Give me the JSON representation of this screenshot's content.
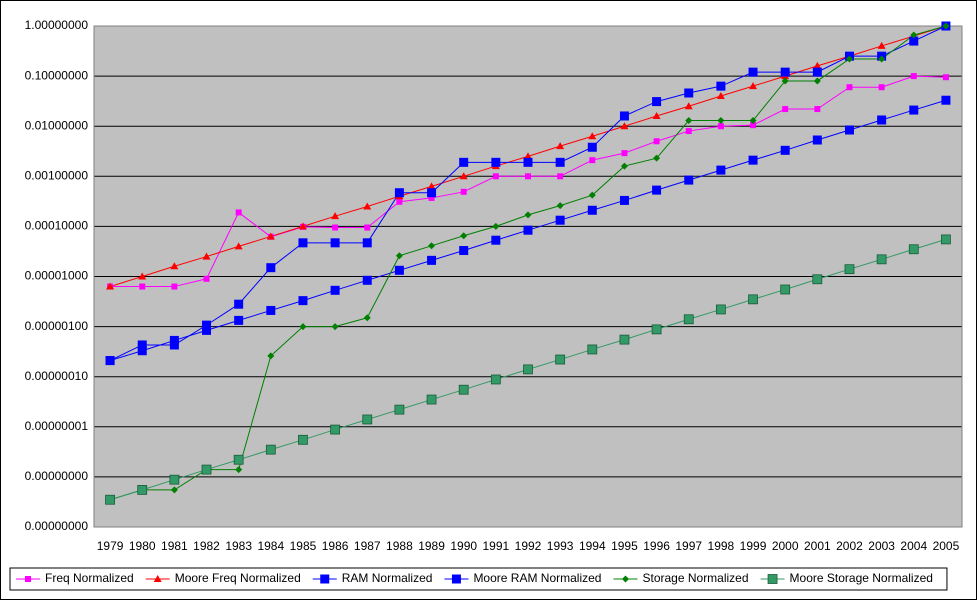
{
  "chart_data": {
    "type": "line",
    "log_scale": true,
    "grid": true,
    "legend": "bottom",
    "categories": [
      "1979",
      "1980",
      "1981",
      "1982",
      "1983",
      "1984",
      "1985",
      "1986",
      "1987",
      "1988",
      "1989",
      "1990",
      "1991",
      "1992",
      "1993",
      "1994",
      "1995",
      "1996",
      "1997",
      "1998",
      "1999",
      "2000",
      "2001",
      "2002",
      "2003",
      "2004",
      "2005"
    ],
    "ylim": [
      1e-10,
      1
    ],
    "yticks": [
      {
        "value": 1,
        "label": "1.00000000"
      },
      {
        "value": 0.1,
        "label": "0.10000000"
      },
      {
        "value": 0.01,
        "label": "0.01000000"
      },
      {
        "value": 0.001,
        "label": "0.00100000"
      },
      {
        "value": 0.0001,
        "label": "0.00010000"
      },
      {
        "value": 1e-05,
        "label": "0.00001000"
      },
      {
        "value": 1e-06,
        "label": "0.00000100"
      },
      {
        "value": 1e-07,
        "label": "0.00000010"
      },
      {
        "value": 1e-08,
        "label": "0.00000001"
      },
      {
        "value": 1e-09,
        "label": "0.00000000"
      },
      {
        "value": 1e-10,
        "label": "0.00000000"
      }
    ],
    "series": [
      {
        "name": "Freq Normalized",
        "color": "#ff00ff",
        "marker": "square-small",
        "values": [
          6.3e-06,
          6.3e-06,
          6.3e-06,
          9e-06,
          0.00019,
          6.2e-05,
          9.8e-05,
          9.5e-05,
          9.5e-05,
          0.00031,
          0.00037,
          0.00049,
          0.001,
          0.001,
          0.001,
          0.0021,
          0.0029,
          0.005,
          0.008,
          0.01,
          0.0105,
          0.022,
          0.022,
          0.06,
          0.06,
          0.1,
          0.095
        ]
      },
      {
        "name": "Moore Freq Normalized",
        "color": "#ff0000",
        "marker": "triangle",
        "values": [
          6.3e-06,
          1e-05,
          1.6e-05,
          2.5e-05,
          4e-05,
          6.3e-05,
          0.0001,
          0.00016,
          0.00025,
          0.0004,
          0.00063,
          0.001,
          0.0016,
          0.0025,
          0.004,
          0.0063,
          0.01,
          0.016,
          0.025,
          0.04,
          0.063,
          0.1,
          0.16,
          0.25,
          0.4,
          0.63,
          1
        ]
      },
      {
        "name": "RAM Normalized",
        "color": "#0000ff",
        "marker": "square",
        "values": [
          2.1e-07,
          4.3e-07,
          4.3e-07,
          1.07e-06,
          2.8e-06,
          1.5e-05,
          4.7e-05,
          4.7e-05,
          4.7e-05,
          0.00047,
          0.00047,
          0.0019,
          0.0019,
          0.0019,
          0.0019,
          0.0038,
          0.016,
          0.031,
          0.046,
          0.063,
          0.12,
          0.12,
          0.12,
          0.25,
          0.25,
          0.5,
          1
        ]
      },
      {
        "name": "Moore RAM Normalized",
        "color": "#0000ff",
        "marker": "square",
        "values": [
          2.1e-07,
          3.3e-07,
          5.3e-07,
          8.4e-07,
          1.33e-06,
          2.1e-06,
          3.3e-06,
          5.3e-06,
          8.4e-06,
          1.33e-05,
          2.1e-05,
          3.3e-05,
          5.3e-05,
          8.4e-05,
          0.000133,
          0.00021,
          0.00033,
          0.00053,
          0.00084,
          0.00133,
          0.0021,
          0.0033,
          0.0053,
          0.0084,
          0.0133,
          0.021,
          0.033
        ]
      },
      {
        "name": "Storage Normalized",
        "color": "#008000",
        "marker": "diamond",
        "values": [
          3.5e-10,
          5.5e-10,
          5.5e-10,
          1.4e-09,
          1.4e-09,
          2.6e-07,
          1e-06,
          1e-06,
          1.5e-06,
          2.6e-05,
          4.1e-05,
          6.5e-05,
          0.0001,
          0.00017,
          0.00026,
          0.00042,
          0.0016,
          0.0023,
          0.013,
          0.013,
          0.013,
          0.08,
          0.08,
          0.22,
          0.22,
          0.66,
          1
        ]
      },
      {
        "name": "Moore Storage Normalized",
        "color": "#339966",
        "marker": "square-x",
        "values": [
          3.5e-10,
          5.5e-10,
          8.8e-10,
          1.4e-09,
          2.2e-09,
          3.5e-09,
          5.5e-09,
          8.8e-09,
          1.4e-08,
          2.2e-08,
          3.5e-08,
          5.5e-08,
          8.8e-08,
          1.4e-07,
          2.2e-07,
          3.5e-07,
          5.5e-07,
          8.8e-07,
          1.4e-06,
          2.2e-06,
          3.5e-06,
          5.5e-06,
          8.8e-06,
          1.4e-05,
          2.2e-05,
          3.5e-05,
          5.5e-05
        ]
      }
    ]
  }
}
